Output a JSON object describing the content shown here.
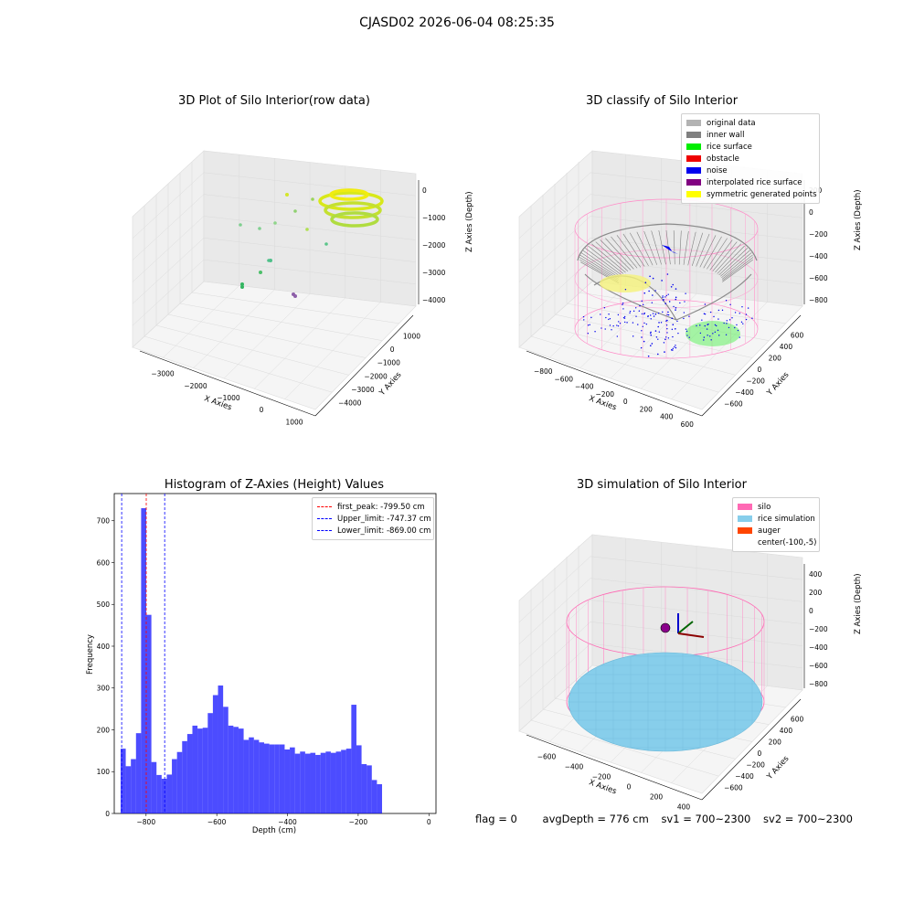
{
  "figure": {
    "suptitle": "CJASD02 2026-06-04 08:25:35"
  },
  "panels": {
    "raw": {
      "title": "3D Plot of Silo Interior(row data)",
      "xlabel": "X Axies",
      "ylabel": "Y Axies",
      "zlabel": "Z Axies (Depth)",
      "x_ticks": [
        "−3000",
        "−2000",
        "−1000",
        "0",
        "1000"
      ],
      "y_ticks": [
        "1000",
        "0",
        "−1000",
        "−2000",
        "−3000",
        "−4000"
      ],
      "z_ticks": [
        "0",
        "−1000",
        "−2000",
        "−3000",
        "−4000"
      ]
    },
    "classify": {
      "title": "3D classify of Silo Interior",
      "xlabel": "X Axies",
      "ylabel": "Y Axies",
      "zlabel": "Z Axies (Depth)",
      "x_ticks": [
        "−800",
        "−600",
        "−400",
        "−200",
        "0",
        "200",
        "400",
        "600"
      ],
      "y_ticks": [
        "600",
        "400",
        "200",
        "0",
        "−200",
        "−400",
        "−600"
      ],
      "z_ticks": [
        "200",
        "0",
        "−200",
        "−400",
        "−600",
        "−800"
      ],
      "legend": [
        {
          "label": "original data",
          "color": "#b3b3b3"
        },
        {
          "label": "inner wall",
          "color": "#808080"
        },
        {
          "label": "rice surface",
          "color": "#00ee00"
        },
        {
          "label": "obstacle",
          "color": "#ee0000"
        },
        {
          "label": "noise",
          "color": "#0000ee"
        },
        {
          "label": "interpolated rice surface",
          "color": "#800080"
        },
        {
          "label": "symmetric generated points",
          "color": "#ffff00"
        }
      ]
    },
    "simulation": {
      "title": "3D simulation of Silo Interior",
      "xlabel": "X Axies",
      "ylabel": "Y Axies",
      "zlabel": "Z Axies (Depth)",
      "x_ticks": [
        "−600",
        "−400",
        "−200",
        "0",
        "200",
        "400"
      ],
      "y_ticks": [
        "600",
        "400",
        "200",
        "0",
        "−200",
        "−400",
        "−600"
      ],
      "z_ticks": [
        "400",
        "200",
        "0",
        "−200",
        "−400",
        "−600",
        "−800"
      ],
      "legend": [
        {
          "label": "silo",
          "color": "#ff69b4"
        },
        {
          "label": "rice simulation",
          "color": "#87ceeb"
        },
        {
          "label": "auger",
          "color": "#ff4500"
        },
        {
          "label": "center(-100,-5)",
          "color": ""
        }
      ]
    }
  },
  "chart_data": [
    {
      "type": "scatter",
      "title": "3D Plot of Silo Interior(row data)",
      "xlabel": "X Axies",
      "ylabel": "Y Axies",
      "zlabel": "Z Axies (Depth)",
      "xlim": [
        -3500,
        1000
      ],
      "ylim": [
        -4500,
        1500
      ],
      "zlim": [
        -4500,
        500
      ]
    },
    {
      "type": "scatter",
      "title": "3D classify of Silo Interior",
      "xlabel": "X Axies",
      "ylabel": "Y Axies",
      "zlabel": "Z Axies (Depth)",
      "xlim": [
        -850,
        650
      ],
      "ylim": [
        -700,
        700
      ],
      "zlim": [
        -900,
        300
      ]
    },
    {
      "type": "bar",
      "title": "Histogram of Z-Axies (Height) Values",
      "xlabel": "Depth (cm)",
      "ylabel": "Frequency",
      "xlim": [
        -890,
        20
      ],
      "ylim": [
        0,
        765
      ],
      "x_ticks": [
        -800,
        -600,
        -400,
        -200,
        0
      ],
      "y_ticks": [
        0,
        100,
        200,
        300,
        400,
        500,
        600,
        700
      ],
      "bin_start": -872,
      "bin_width": 14.5,
      "values": [
        155,
        113,
        130,
        192,
        730,
        475,
        123,
        92,
        83,
        93,
        130,
        147,
        173,
        190,
        210,
        203,
        205,
        240,
        283,
        306,
        255,
        210,
        207,
        203,
        176,
        182,
        176,
        170,
        167,
        165,
        165,
        165,
        153,
        158,
        143,
        148,
        143,
        145,
        140,
        145,
        148,
        145,
        148,
        152,
        155,
        260,
        163,
        118,
        115,
        80,
        70
      ],
      "legend": [
        {
          "label": "first_peak: -799.50 cm",
          "color": "#ff0000",
          "value": -799.5
        },
        {
          "label": "Upper_limit: -747.37 cm",
          "color": "#0000ff",
          "value": -747.37
        },
        {
          "label": "Lower_limit: -869.00 cm",
          "color": "#0000ff",
          "value": -869.0
        }
      ]
    },
    {
      "type": "scatter",
      "title": "3D simulation of Silo Interior",
      "xlabel": "X Axies",
      "ylabel": "Y Axies",
      "zlabel": "Z Axies (Depth)",
      "xlim": [
        -700,
        500
      ],
      "ylim": [
        -700,
        700
      ],
      "zlim": [
        -900,
        500
      ]
    }
  ],
  "status": {
    "flag": "flag = 0",
    "avg_depth": "avgDepth = 776 cm",
    "sv1": "sv1 = 700~2300",
    "sv2": "sv2 = 700~2300"
  }
}
